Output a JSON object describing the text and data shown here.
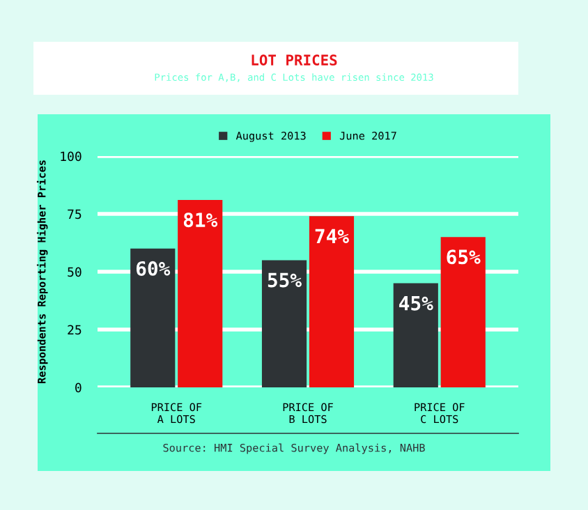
{
  "chart_data": {
    "type": "bar",
    "title": "LOT PRICES",
    "subtitle": "Prices for A,B, and C Lots have risen since 2013",
    "ylabel": "Respondents Reporting Higher Prices",
    "categories": [
      "PRICE OF\nA LOTS",
      "PRICE OF\nB LOTS",
      "PRICE OF\nC LOTS"
    ],
    "series": [
      {
        "name": "August 2013",
        "color": "#2e3336",
        "values": [
          60,
          55,
          45
        ],
        "value_labels": [
          "60%",
          "55%",
          "45%"
        ]
      },
      {
        "name": "June 2017",
        "color": "#ee1111",
        "values": [
          81,
          74,
          65
        ],
        "value_labels": [
          "81%",
          "74%",
          "65%"
        ]
      }
    ],
    "ylim": [
      0,
      100
    ],
    "yticks": [
      0,
      25,
      50,
      75,
      100
    ],
    "grid": "y",
    "legend": "top",
    "annotations": [
      "Source: HMI Special Survey Analysis, NAHB"
    ]
  }
}
